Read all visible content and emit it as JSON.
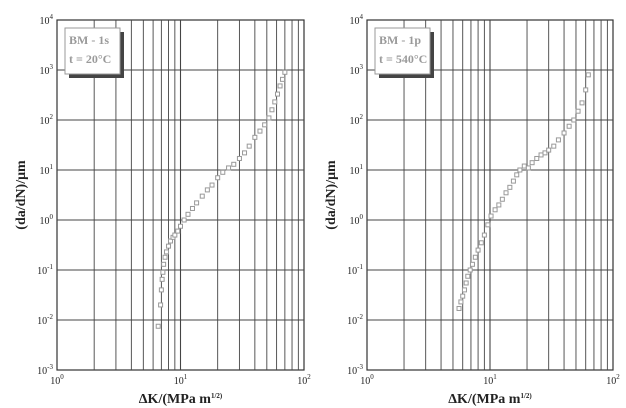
{
  "chart_data": [
    {
      "type": "scatter",
      "xlabel": "ΔK/(MPa m^1/2)",
      "ylabel": "(da/dN)/μm",
      "xscale": "log",
      "yscale": "log",
      "xlim": [
        1,
        100
      ],
      "ylim": [
        0.001,
        10000
      ],
      "grid": "on",
      "x_tick_labels": [
        "10^0",
        "10^1",
        "10^2"
      ],
      "y_tick_labels": [
        "10^-3",
        "10^-2",
        "10^-1",
        "10^0",
        "10^1",
        "10^2",
        "10^3",
        "10^4"
      ],
      "legend_position": "top-left",
      "legend_lines": [
        "BM - 1s",
        "t = 20°C"
      ],
      "marker_color": "#999999",
      "series": [
        {
          "x": [
            6.6,
            6.9,
            7.0,
            7.1,
            7.2,
            7.3,
            7.5,
            7.7,
            8.0,
            8.3,
            8.7,
            9.0,
            9.5,
            10.0,
            10.7,
            11.5,
            12.5,
            13.5,
            15.0,
            16.5,
            18.0,
            20.0,
            22.0,
            24.5,
            27.0,
            30.0,
            33.0,
            36.0,
            40.0,
            44.0,
            48.0,
            52.0,
            55.0,
            58.0,
            61.0,
            64.0,
            67.0,
            70.0
          ],
          "y": [
            0.0075,
            0.02,
            0.04,
            0.065,
            0.09,
            0.13,
            0.18,
            0.23,
            0.3,
            0.38,
            0.45,
            0.5,
            0.6,
            0.75,
            1.0,
            1.3,
            1.7,
            2.2,
            3.0,
            4.0,
            5.0,
            7.0,
            9.0,
            11.0,
            13.0,
            17.0,
            22.0,
            30.0,
            45.0,
            60.0,
            80.0,
            110.0,
            160.0,
            230.0,
            330.0,
            480.0,
            650.0,
            900.0
          ]
        }
      ]
    },
    {
      "type": "scatter",
      "xlabel": "ΔK/(MPa m^1/2)",
      "ylabel": "(da/dN)/μm",
      "xscale": "log",
      "yscale": "log",
      "xlim": [
        1,
        100
      ],
      "ylim": [
        0.001,
        10000
      ],
      "grid": "on",
      "x_tick_labels": [
        "10^0",
        "10^1",
        "10^2"
      ],
      "y_tick_labels": [
        "10^-3",
        "10^-2",
        "10^-1",
        "10^0",
        "10^1",
        "10^2",
        "10^3",
        "10^4"
      ],
      "legend_position": "top-left",
      "legend_lines": [
        "BM - 1p",
        "t = 540°C"
      ],
      "marker_color": "#999999",
      "series": [
        {
          "x": [
            5.6,
            5.8,
            6.0,
            6.2,
            6.4,
            6.6,
            6.9,
            7.2,
            7.6,
            8.0,
            8.5,
            9.0,
            9.6,
            10.2,
            11.0,
            11.8,
            12.6,
            13.5,
            14.5,
            15.5,
            16.5,
            17.5,
            19.0,
            20.5,
            22.0,
            24.0,
            26.0,
            28.0,
            30.0,
            33.0,
            36.0,
            40.0,
            44.0,
            48.0,
            52.0,
            56.0,
            60.0,
            63.0
          ],
          "y": [
            0.017,
            0.023,
            0.03,
            0.04,
            0.055,
            0.075,
            0.1,
            0.13,
            0.18,
            0.25,
            0.35,
            0.5,
            0.8,
            1.2,
            1.6,
            2.0,
            2.6,
            3.5,
            4.5,
            6.0,
            8.0,
            10.0,
            12.0,
            11.0,
            14.0,
            17.0,
            20.0,
            22.0,
            25.0,
            30.0,
            40.0,
            55.0,
            75.0,
            100.0,
            150.0,
            220.0,
            400.0,
            800.0
          ]
        }
      ]
    }
  ]
}
